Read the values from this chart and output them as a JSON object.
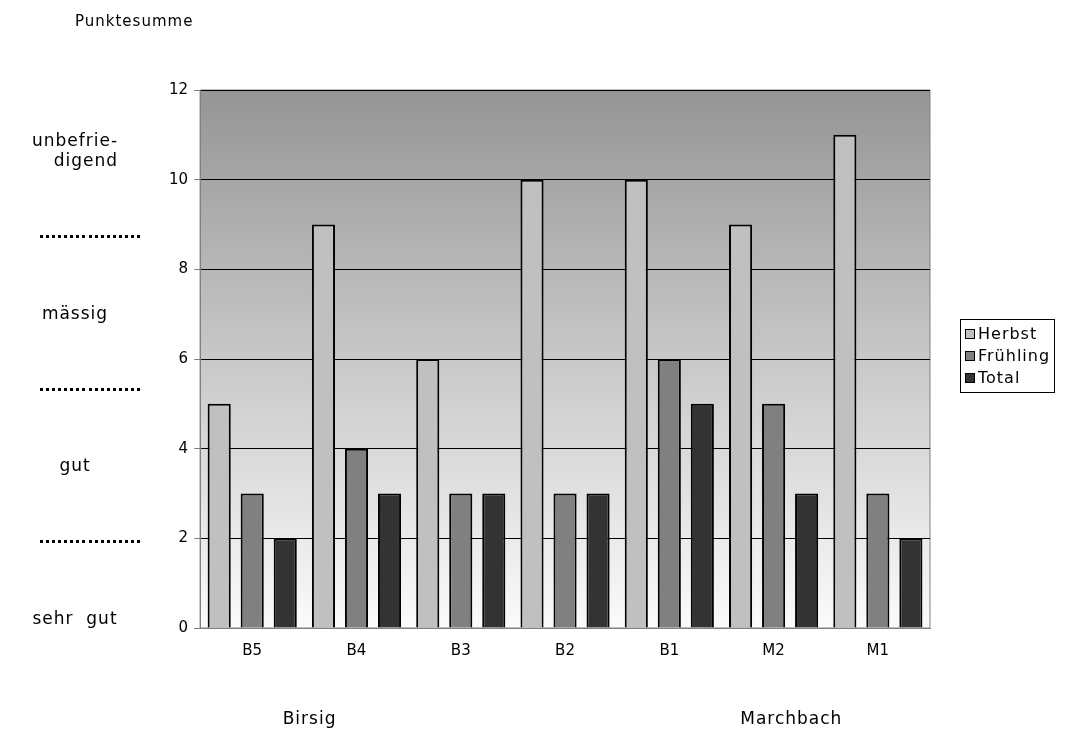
{
  "chart_data": {
    "type": "bar",
    "ylabel": "Punktesumme",
    "categories": [
      "B5",
      "B4",
      "B3",
      "B2",
      "B1",
      "M2",
      "M1"
    ],
    "series": [
      {
        "name": "Herbst",
        "color": "#c0c0c0",
        "values": [
          5,
          9,
          6,
          10,
          10,
          9,
          11
        ]
      },
      {
        "name": "Frühling",
        "color": "#808080",
        "values": [
          3,
          4,
          3,
          3,
          6,
          5,
          3
        ]
      },
      {
        "name": "Total",
        "color": "#333333",
        "values": [
          2,
          3,
          3,
          3,
          5,
          3,
          2
        ]
      }
    ],
    "ylim": [
      0,
      12
    ],
    "yticks": [
      0,
      2,
      4,
      6,
      8,
      10,
      12
    ],
    "grid": "y",
    "legend": "right",
    "annotations": [
      "unbefrie-\ndigend",
      "mässig",
      "gut",
      "sehr  gut",
      "Birsig",
      "Marchbach"
    ]
  }
}
